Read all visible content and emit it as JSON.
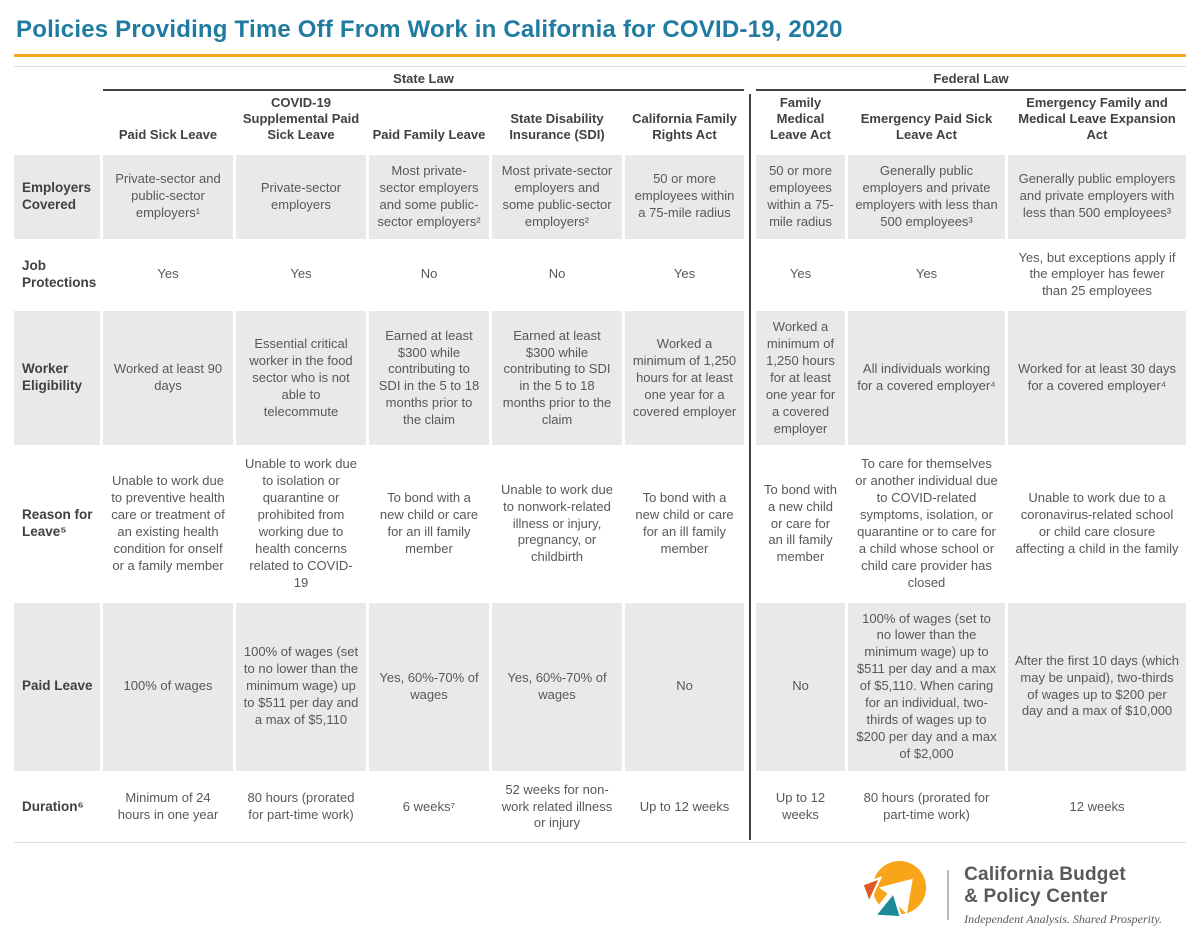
{
  "title": "Policies Providing Time Off From Work in California for COVID-19, 2020",
  "colors": {
    "title_color": "#1F7B9F",
    "accent_rule": "#F7A823",
    "shaded_cell": "#E9E9E9",
    "header_text": "#414042",
    "body_text": "#57585A",
    "logo_yellow": "#F9A51A",
    "logo_orange": "#E05A26",
    "logo_teal": "#1E8A99"
  },
  "table": {
    "groups": [
      {
        "label": "State Law",
        "span": 5
      },
      {
        "label": "Federal Law",
        "span": 3
      }
    ],
    "columns": [
      "Paid Sick Leave",
      "COVID-19 Supplemental Paid Sick Leave",
      "Paid Family Leave",
      "State Disability Insurance (SDI)",
      "California Family Rights Act",
      "Family Medical Leave Act",
      "Emergency Paid Sick Leave Act",
      "Emergency Family and Medical Leave Expansion Act"
    ],
    "rows": [
      {
        "label": "Employers Covered",
        "shaded": true,
        "min_height": 70,
        "cells": [
          "Private-sector and public-sector employers¹",
          "Private-sector employers",
          "Most private-sector employers and some public-sector employers²",
          "Most private-sector employers and some public-sector employers²",
          "50 or more employees within a 75-mile radius",
          "50 or more employees within a 75-mile radius",
          "Generally public employers and private employers with less than 500 employees³",
          "Generally public employers and private employers with less than 500 employees³"
        ]
      },
      {
        "label": "Job Protections",
        "shaded": false,
        "min_height": 54,
        "cells": [
          "Yes",
          "Yes",
          "No",
          "No",
          "Yes",
          "Yes",
          "Yes",
          "Yes, but exceptions apply if the employer has fewer than 25 employees"
        ]
      },
      {
        "label": "Worker Eligibility",
        "shaded": true,
        "min_height": 116,
        "cells": [
          "Worked at least 90 days",
          "Essential critical worker in the food sector who is not able to telecommute",
          "Earned at least $300 while contributing to SDI in the 5 to 18 months prior to the claim",
          "Earned at least $300 while contributing to SDI in the 5 to 18 months prior to the claim",
          "Worked a minimum of 1,250 hours for at least one year for a covered employer",
          "Worked a minimum of 1,250 hours for at least one year for a covered employer",
          "All individuals working for a covered employer⁴",
          "Worked for at least 30 days for a covered employer⁴"
        ]
      },
      {
        "label": "Reason for Leave⁵",
        "shaded": false,
        "min_height": 140,
        "cells": [
          "Unable to work due to preventive health care or treatment of an existing health condition for onself or a family member",
          "Unable to work due to isolation or quarantine or prohibited from working due to health concerns related to COVID-19",
          "To bond with a new child or care for an ill family member",
          "Unable to work due to nonwork-related illness or injury, pregnancy, or childbirth",
          "To bond with a new child or care for an ill family member",
          "To bond with a new child or care for an ill family member",
          "To care for themselves or another individual due to COVID-related symptoms, isolation, or quarantine or to care for a child whose school or child care provider has closed",
          "Unable to work due to a coronavirus-related school or child care closure affecting a child in the family"
        ]
      },
      {
        "label": "Paid Leave",
        "shaded": true,
        "min_height": 168,
        "cells": [
          "100% of wages",
          "100% of wages (set to no lower than the minimum wage) up to $511 per day and a max of $5,110",
          "Yes, 60%-70% of wages",
          "Yes, 60%-70% of wages",
          "No",
          "No",
          "100% of wages (set to no lower than the minimum wage) up to $511 per day and a max of $5,110. When caring for an individual, two-thirds of wages up to $200 per day and a max of $2,000",
          "After the first 10 days (which may be unpaid), two-thirds of wages up to $200 per day and a max of $10,000"
        ]
      },
      {
        "label": "Duration⁶",
        "shaded": false,
        "min_height": 60,
        "cells": [
          "Minimum of 24 hours in one year",
          "80 hours (prorated for part-time work)",
          "6 weeks⁷",
          "52 weeks for non-work related illness or injury",
          "Up to 12 weeks",
          "Up to 12 weeks",
          "80 hours (prorated for part-time work)",
          "12 weeks"
        ]
      }
    ]
  },
  "logo": {
    "line1": "California Budget",
    "line2": "& Policy Center",
    "tagline": "Independent Analysis. Shared Prosperity."
  }
}
